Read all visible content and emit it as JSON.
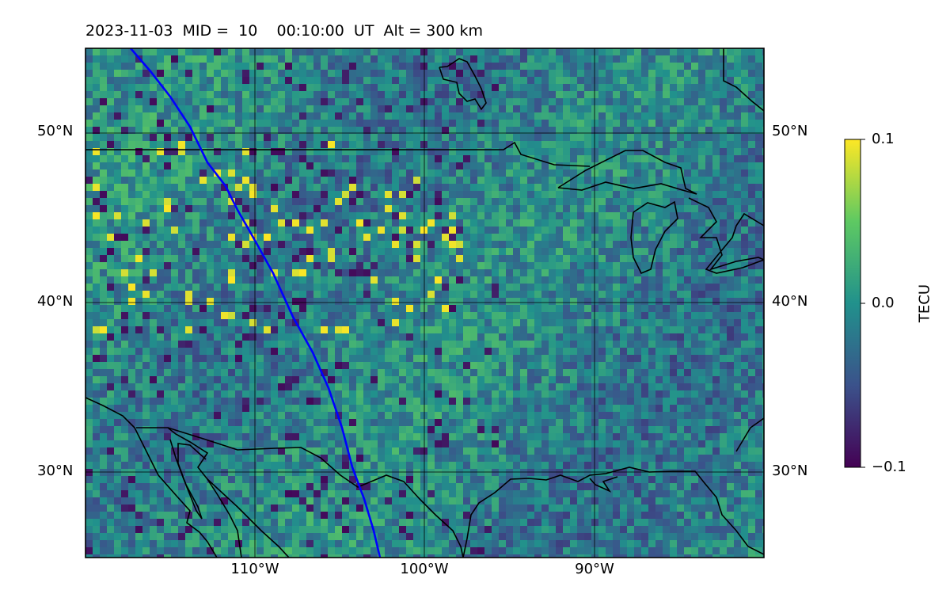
{
  "title": "2023-11-03  MID =  10    00:10:00  UT  Alt = 300 km",
  "map": {
    "projection": "plate carree",
    "lon_range_deg": [
      -120,
      -80
    ],
    "lat_range_deg": [
      25,
      55
    ],
    "field": "TEC difference (noisy pixel grid)",
    "track_color": "#0000ff",
    "coast_color": "#000000",
    "grid_color": "#000000"
  },
  "lat_labels": [
    "50°N",
    "40°N",
    "30°N"
  ],
  "lon_labels": [
    "110°W",
    "100°W",
    "90°W"
  ],
  "colorbar": {
    "label": "TECU",
    "colormap": "viridis",
    "min": -0.1,
    "max": 0.1,
    "ticks": [
      "0.1",
      "0.0",
      "−0.1"
    ]
  }
}
